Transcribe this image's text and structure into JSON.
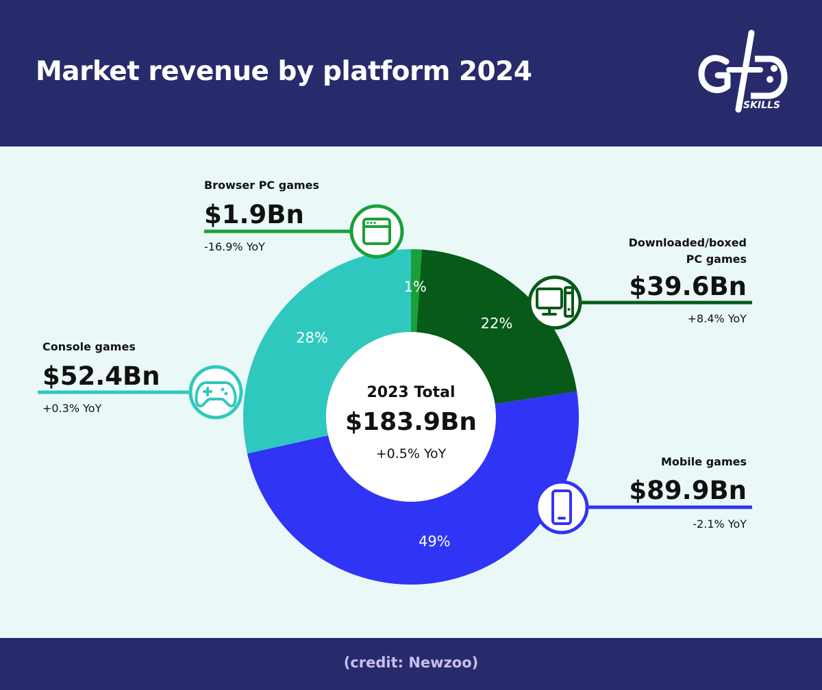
{
  "header": {
    "title": "Market revenue by platform 2024"
  },
  "logo": {
    "text": "SKILLS"
  },
  "footer": {
    "credit": "(credit: Newzoo)"
  },
  "chart_data": {
    "type": "pie",
    "center": {
      "title": "2023 Total",
      "value": "$183.9Bn",
      "yoy": "+0.5% YoY"
    },
    "series": [
      {
        "name": "Browser PC games",
        "value": 1.9,
        "value_label": "$1.9Bn",
        "percent_label": "1%",
        "yoy": "-16.9% YoY",
        "color": "#1aa03a",
        "icon": "browser-window-icon"
      },
      {
        "name": "Downloaded/boxed PC games",
        "name_lines": [
          "Downloaded/boxed",
          "PC games"
        ],
        "value": 39.6,
        "value_label": "$39.6Bn",
        "percent_label": "22%",
        "yoy": "+8.4% YoY",
        "color": "#075a18",
        "icon": "desktop-computer-icon"
      },
      {
        "name": "Mobile games",
        "value": 89.9,
        "value_label": "$89.9Bn",
        "percent_label": "49%",
        "yoy": "-2.1% YoY",
        "color": "#3034f5",
        "icon": "smartphone-icon"
      },
      {
        "name": "Console games",
        "value": 52.4,
        "value_label": "$52.4Bn",
        "percent_label": "28%",
        "yoy": "+0.3% YoY",
        "color": "#2ec8be",
        "icon": "gamepad-icon"
      }
    ]
  }
}
